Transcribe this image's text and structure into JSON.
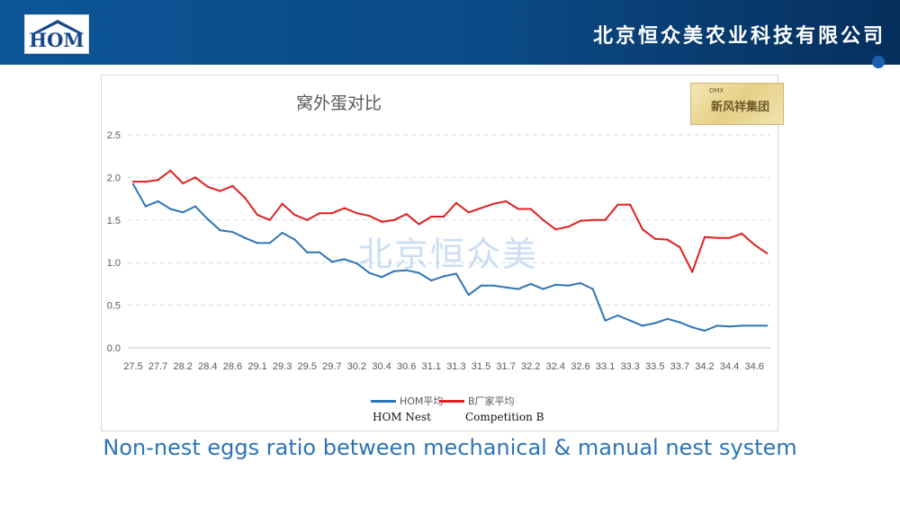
{
  "header": {
    "logo_text": "HOM",
    "company_name": "北京恒众美农业科技有限公司"
  },
  "badge": {
    "small_text": "DMX",
    "text": "新风祥集团"
  },
  "watermark": "北京恒众美",
  "legend": {
    "series_labels": [
      "HOM平均",
      "B厂家平均"
    ],
    "sub_labels": [
      "HOM Nest",
      "Competition B"
    ]
  },
  "caption": "Non-nest eggs ratio between mechanical & manual nest system",
  "chart_data": {
    "type": "line",
    "title": "窝外蛋对比",
    "xlabel": "",
    "ylabel": "",
    "ylim": [
      0,
      2.5
    ],
    "yticks": [
      "0.0",
      "0.5",
      "1.0",
      "1.5",
      "2.0",
      "2.5"
    ],
    "x": [
      "27.5",
      "27.6",
      "27.7",
      "28.1",
      "28.2",
      "28.3",
      "28.4",
      "28.5",
      "28.6",
      "28.7",
      "29.1",
      "29.2",
      "29.3",
      "29.4",
      "29.5",
      "29.6",
      "29.7",
      "30.1",
      "30.2",
      "30.3",
      "30.4",
      "30.5",
      "30.6",
      "30.7",
      "31.1",
      "31.2",
      "31.3",
      "31.4",
      "31.5",
      "31.6",
      "31.7",
      "32.1",
      "32.2",
      "32.3",
      "32.4",
      "32.5",
      "32.6",
      "32.7",
      "33.1",
      "33.2",
      "33.3",
      "33.4",
      "33.5",
      "33.6",
      "33.7",
      "34.1",
      "34.2",
      "34.3",
      "34.4",
      "34.5",
      "34.6",
      "34.7"
    ],
    "x_tick_labels": [
      "27.5",
      "27.7",
      "28.2",
      "28.4",
      "28.6",
      "29.1",
      "29.3",
      "29.5",
      "29.7",
      "30.2",
      "30.4",
      "30.6",
      "31.1",
      "31.3",
      "31.5",
      "31.7",
      "32.2",
      "32.4",
      "32.6",
      "33.1",
      "33.3",
      "33.5",
      "33.7",
      "34.2",
      "34.4",
      "34.6"
    ],
    "series": [
      {
        "name": "HOM平均",
        "color": "#2e75b6",
        "values": [
          1.92,
          1.66,
          1.72,
          1.63,
          1.59,
          1.66,
          1.51,
          1.38,
          1.36,
          1.29,
          1.23,
          1.23,
          1.35,
          1.27,
          1.12,
          1.12,
          1.01,
          1.04,
          0.99,
          0.88,
          0.83,
          0.9,
          0.91,
          0.88,
          0.79,
          0.84,
          0.87,
          0.62,
          0.73,
          0.73,
          0.71,
          0.69,
          0.75,
          0.69,
          0.74,
          0.73,
          0.76,
          0.69,
          0.32,
          0.38,
          0.32,
          0.26,
          0.29,
          0.34,
          0.3,
          0.24,
          0.2,
          0.26,
          0.25,
          0.26,
          0.26,
          0.26
        ]
      },
      {
        "name": "B厂家平均",
        "color": "#e02020",
        "values": [
          1.95,
          1.95,
          1.97,
          2.08,
          1.93,
          2.0,
          1.89,
          1.84,
          1.9,
          1.76,
          1.56,
          1.5,
          1.69,
          1.56,
          1.5,
          1.58,
          1.58,
          1.64,
          1.58,
          1.55,
          1.48,
          1.5,
          1.57,
          1.45,
          1.54,
          1.54,
          1.7,
          1.59,
          1.64,
          1.69,
          1.72,
          1.63,
          1.63,
          1.5,
          1.39,
          1.42,
          1.49,
          1.5,
          1.5,
          1.68,
          1.68,
          1.39,
          1.28,
          1.27,
          1.18,
          0.89,
          1.3,
          1.29,
          1.29,
          1.34,
          1.21,
          1.11
        ]
      }
    ]
  }
}
